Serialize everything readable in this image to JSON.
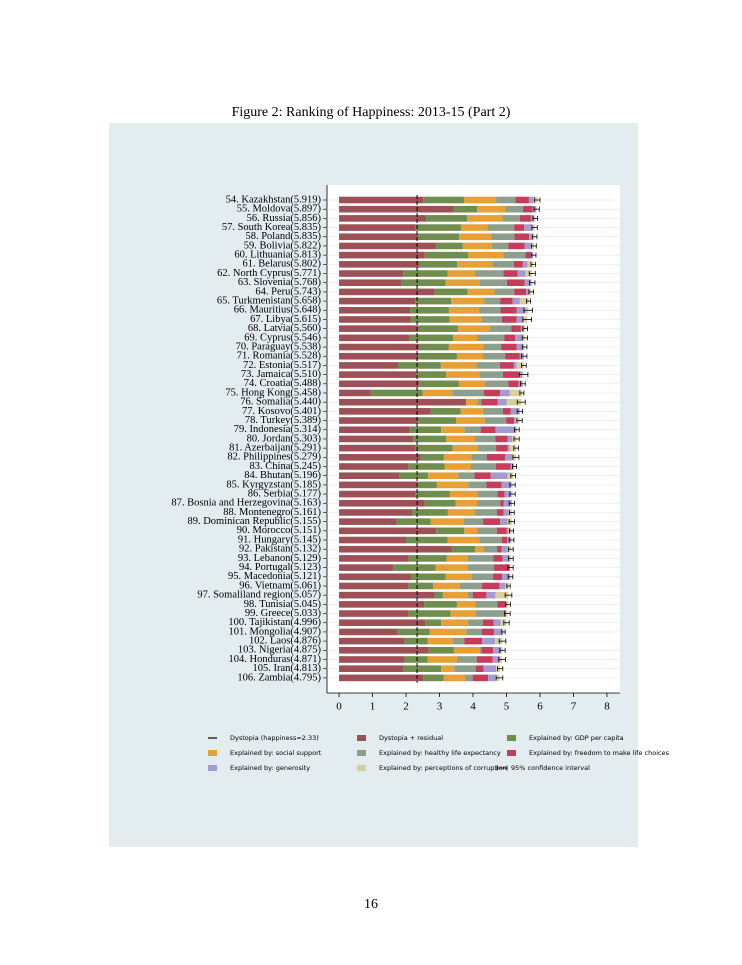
{
  "chart_data": {
    "type": "stacked-barh",
    "title": "Figure 2: Ranking of Happiness: 2013-15 (Part 2)",
    "page_number": "16",
    "categories": [
      "54. Kazakhstan(5.919)",
      "55. Moldova(5.897)",
      "56. Russia(5.856)",
      "57. South Korea(5.835)",
      "58. Poland(5.835)",
      "59. Bolivia(5.822)",
      "60. Lithuania(5.813)",
      "61. Belarus(5.802)",
      "62. North Cyprus(5.771)",
      "63. Slovenia(5.768)",
      "64. Peru(5.743)",
      "65. Turkmenistan(5.658)",
      "66. Mauritius(5.648)",
      "67. Libya(5.615)",
      "68. Latvia(5.560)",
      "69. Cyprus(5.546)",
      "70. Paraguay(5.538)",
      "71. Romania(5.528)",
      "72. Estonia(5.517)",
      "73. Jamaica(5.510)",
      "74. Croatia(5.488)",
      "75. Hong Kong(5.458)",
      "76. Somalia(5.440)",
      "77. Kosovo(5.401)",
      "78. Turkey(5.389)",
      "79. Indonesia(5.314)",
      "80. Jordan(5.303)",
      "81. Azerbaijan(5.291)",
      "82. Philippines(5.279)",
      "83. China(5.245)",
      "84. Bhutan(5.196)",
      "85. Kyrgyzstan(5.185)",
      "86. Serbia(5.177)",
      "87. Bosnia and Herzegovina(5.163)",
      "88. Montenegro(5.161)",
      "89. Dominican Republic(5.155)",
      "90. Morocco(5.151)",
      "91. Hungary(5.145)",
      "92. Pakistan(5.132)",
      "93. Lebanon(5.129)",
      "94. Portugal(5.123)",
      "95. Macedonia(5.121)",
      "96. Vietnam(5.061)",
      "97. Somaliland region(5.057)",
      "98. Tunisia(5.045)",
      "99. Greece(5.033)",
      "100. Tajikistan(4.996)",
      "101. Mongolia(4.907)",
      "102. Laos(4.876)",
      "103. Nigeria(4.875)",
      "104. Honduras(4.871)",
      "105. Iran(4.813)",
      "106. Zambia(4.795)"
    ],
    "series": [
      {
        "name": "Dystopia + residual",
        "color": "#9e5057",
        "values": [
          2.51,
          3.43,
          2.6,
          2.29,
          2.34,
          2.9,
          2.56,
          2.4,
          1.92,
          1.85,
          2.86,
          2.27,
          2.13,
          2.16,
          2.33,
          2.1,
          2.39,
          2.37,
          1.76,
          2.31,
          2.39,
          0.95,
          3.79,
          2.73,
          2.33,
          2.09,
          2.21,
          2.27,
          2.43,
          2.07,
          1.81,
          2.35,
          2.28,
          2.55,
          2.18,
          1.72,
          2.9,
          2.0,
          3.37,
          2.08,
          1.62,
          2.17,
          2.07,
          2.85,
          2.54,
          2.08,
          2.57,
          1.73,
          1.96,
          2.67,
          1.96,
          1.93,
          2.51
        ]
      },
      {
        "name": "Explained by: GDP per capita",
        "color": "#6f8d4c",
        "values": [
          1.22,
          0.69,
          1.23,
          1.35,
          1.25,
          0.79,
          1.3,
          1.13,
          1.32,
          1.33,
          0.98,
          1.08,
          1.15,
          1.14,
          1.22,
          1.31,
          0.89,
          1.15,
          1.28,
          0.89,
          1.19,
          1.55,
          0.0,
          0.9,
          1.17,
          0.96,
          0.99,
          1.12,
          0.7,
          1.08,
          0.85,
          0.56,
          1.03,
          0.93,
          1.07,
          1.02,
          0.84,
          1.24,
          0.69,
          1.13,
          1.27,
          1.01,
          0.74,
          0.25,
          0.98,
          1.25,
          0.48,
          0.98,
          0.69,
          0.76,
          0.69,
          1.12,
          0.61
        ]
      },
      {
        "name": "Explained by: social support",
        "color": "#e8a036",
        "values": [
          0.96,
          0.84,
          1.05,
          0.79,
          0.95,
          0.87,
          1.05,
          1.05,
          0.82,
          1.03,
          0.8,
          0.99,
          0.9,
          0.95,
          0.96,
          0.71,
          1.03,
          0.78,
          1.06,
          0.99,
          0.77,
          0.88,
          0.34,
          0.66,
          0.85,
          0.69,
          0.86,
          0.76,
          0.82,
          0.79,
          0.9,
          0.95,
          0.82,
          0.64,
          0.8,
          0.97,
          0.38,
          0.95,
          0.26,
          0.64,
          0.95,
          0.78,
          0.8,
          0.75,
          0.55,
          0.75,
          0.79,
          1.09,
          0.74,
          0.77,
          0.87,
          0.39,
          0.64
        ]
      },
      {
        "name": "Explained by: healthy life expectancy",
        "color": "#8c9e8c",
        "values": [
          0.58,
          0.53,
          0.52,
          0.8,
          0.7,
          0.49,
          0.65,
          0.64,
          0.85,
          0.8,
          0.59,
          0.47,
          0.64,
          0.61,
          0.63,
          0.81,
          0.53,
          0.66,
          0.7,
          0.7,
          0.71,
          0.94,
          0.12,
          0.6,
          0.64,
          0.49,
          0.61,
          0.54,
          0.46,
          0.74,
          0.48,
          0.54,
          0.6,
          0.7,
          0.66,
          0.59,
          0.59,
          0.67,
          0.4,
          0.76,
          0.79,
          0.64,
          0.66,
          0.14,
          0.66,
          0.84,
          0.45,
          0.46,
          0.35,
          0.05,
          0.59,
          0.64,
          0.23
        ]
      },
      {
        "name": "Explained by: freedom to make life choices",
        "color": "#c63d5c",
        "values": [
          0.4,
          0.29,
          0.33,
          0.3,
          0.44,
          0.49,
          0.16,
          0.27,
          0.42,
          0.53,
          0.36,
          0.37,
          0.48,
          0.44,
          0.29,
          0.33,
          0.46,
          0.44,
          0.42,
          0.48,
          0.3,
          0.49,
          0.49,
          0.24,
          0.24,
          0.44,
          0.36,
          0.35,
          0.55,
          0.44,
          0.49,
          0.45,
          0.21,
          0.1,
          0.2,
          0.51,
          0.3,
          0.16,
          0.13,
          0.27,
          0.46,
          0.27,
          0.52,
          0.41,
          0.24,
          0.06,
          0.33,
          0.37,
          0.53,
          0.35,
          0.48,
          0.24,
          0.46
        ]
      },
      {
        "name": "Explained by: generosity",
        "color": "#a39bd1",
        "values": [
          0.14,
          0.11,
          0.1,
          0.25,
          0.12,
          0.19,
          0.07,
          0.14,
          0.24,
          0.19,
          0.1,
          0.22,
          0.27,
          0.21,
          0.09,
          0.23,
          0.21,
          0.12,
          0.08,
          0.1,
          0.12,
          0.28,
          0.26,
          0.26,
          0.04,
          0.61,
          0.14,
          0.05,
          0.21,
          0.09,
          0.5,
          0.29,
          0.2,
          0.24,
          0.16,
          0.22,
          0.05,
          0.11,
          0.18,
          0.21,
          0.01,
          0.22,
          0.17,
          0.27,
          0.02,
          0.01,
          0.2,
          0.25,
          0.39,
          0.24,
          0.22,
          0.37,
          0.22
        ]
      },
      {
        "name": "Explained by: perceptions of corruption",
        "color": "#d8cf9c",
        "values": [
          0.11,
          0.01,
          0.03,
          0.06,
          0.04,
          0.09,
          0.02,
          0.17,
          0.2,
          0.04,
          0.05,
          0.26,
          0.08,
          0.11,
          0.04,
          0.06,
          0.03,
          0.01,
          0.22,
          0.04,
          0.01,
          0.37,
          0.44,
          0.01,
          0.12,
          0.03,
          0.13,
          0.2,
          0.11,
          0.03,
          0.17,
          0.04,
          0.04,
          0.0,
          0.09,
          0.13,
          0.09,
          0.02,
          0.1,
          0.04,
          0.02,
          0.03,
          0.1,
          0.39,
          0.06,
          0.04,
          0.18,
          0.03,
          0.22,
          0.04,
          0.06,
          0.12,
          0.12
        ]
      }
    ],
    "errors": [
      0.08,
      0.08,
      0.07,
      0.08,
      0.07,
      0.07,
      0.07,
      0.07,
      0.09,
      0.08,
      0.07,
      0.06,
      0.13,
      0.13,
      0.07,
      0.08,
      0.07,
      0.08,
      0.07,
      0.13,
      0.07,
      0.06,
      0.12,
      0.08,
      0.08,
      0.07,
      0.08,
      0.07,
      0.09,
      0.06,
      0.07,
      0.08,
      0.08,
      0.08,
      0.07,
      0.08,
      0.06,
      0.07,
      0.07,
      0.07,
      0.08,
      0.07,
      0.05,
      0.1,
      0.07,
      0.08,
      0.08,
      0.05,
      0.1,
      0.08,
      0.1,
      0.08,
      0.1
    ],
    "dystopia": 2.33,
    "dystopia_label": "Dystopia (happiness=2.33)",
    "ci_label": "95% confidence interval",
    "xlim": [
      -0.36,
      8.39
    ],
    "xticks": [
      0,
      1,
      2,
      3,
      4,
      5,
      6,
      7,
      8
    ],
    "grid": true
  }
}
